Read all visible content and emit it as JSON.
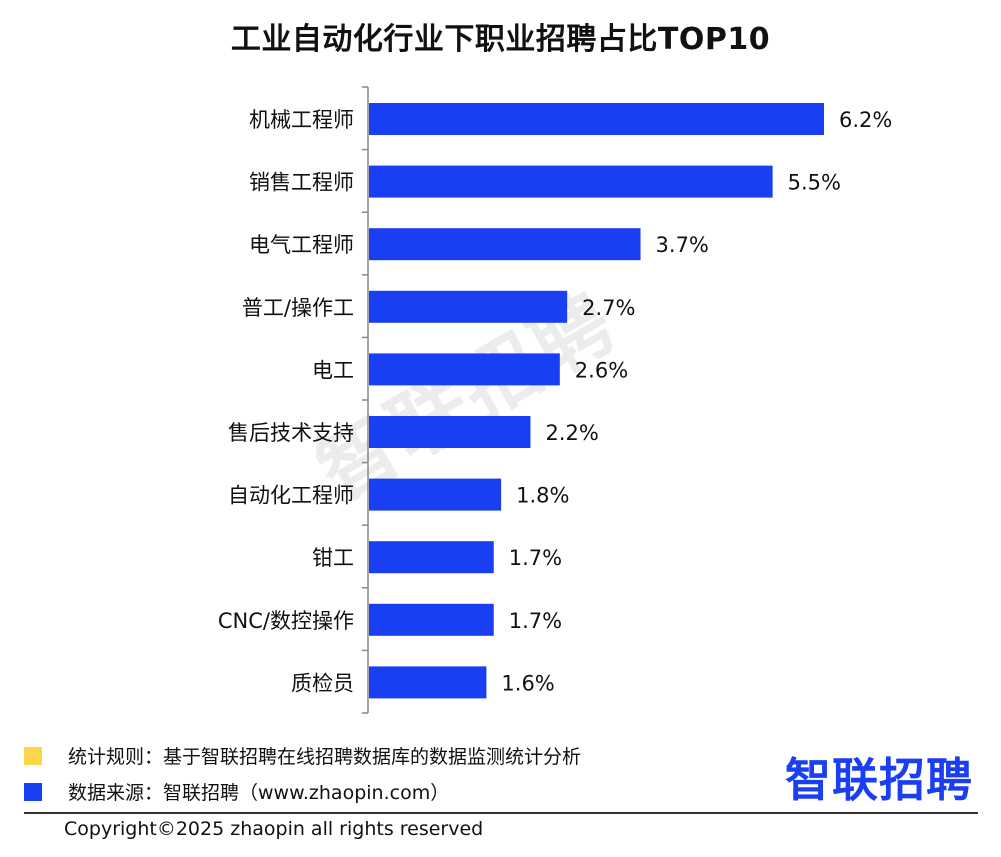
{
  "title": "工业自动化行业下职业招聘占比TOP10",
  "watermark": "智联招聘",
  "chart_data": {
    "type": "bar",
    "orientation": "horizontal",
    "title": "工业自动化行业下职业招聘占比TOP10",
    "categories": [
      "机械工程师",
      "销售工程师",
      "电气工程师",
      "普工/操作工",
      "电工",
      "售后技术支持",
      "自动化工程师",
      "钳工",
      "CNC/数控操作",
      "质检员"
    ],
    "values": [
      6.2,
      5.5,
      3.7,
      2.7,
      2.6,
      2.2,
      1.8,
      1.7,
      1.7,
      1.6
    ],
    "labels": [
      "6.2%",
      "5.5%",
      "3.7%",
      "2.7%",
      "2.6%",
      "2.2%",
      "1.8%",
      "1.7%",
      "1.7%",
      "1.6%"
    ],
    "unit": "%",
    "xlim": [
      0,
      6.2
    ],
    "bar_color": "#1a3ff2",
    "grid": false
  },
  "legend": {
    "rule_text": "统计规则：基于智联招聘在线招聘数据库的数据监测统计分析",
    "rule_color": "#fdd54a",
    "source_text": "数据来源：智联招聘（www.zhaopin.com）",
    "source_color": "#1a3ff2"
  },
  "brand": "智联招聘",
  "copyright": "Copyright©2025 zhaopin all rights reserved"
}
